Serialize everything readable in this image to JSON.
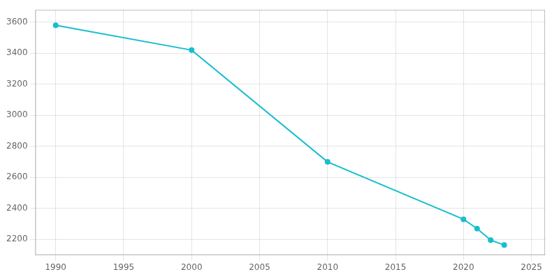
{
  "chart_data": {
    "type": "line",
    "x": [
      1990,
      2000,
      2010,
      2020,
      2021,
      2022,
      2023
    ],
    "series": [
      {
        "values": [
          3580,
          3420,
          2700,
          2330,
          2270,
          2196,
          2164
        ],
        "color": "#17becf",
        "marker": "circle"
      }
    ],
    "xlim": [
      1988.5,
      2026
    ],
    "ylim": [
      2100,
      3680
    ],
    "xticks": [
      1990,
      1995,
      2000,
      2005,
      2010,
      2015,
      2020,
      2025
    ],
    "yticks": [
      2200,
      2400,
      2600,
      2800,
      3000,
      3200,
      3400,
      3600
    ],
    "grid": true
  }
}
